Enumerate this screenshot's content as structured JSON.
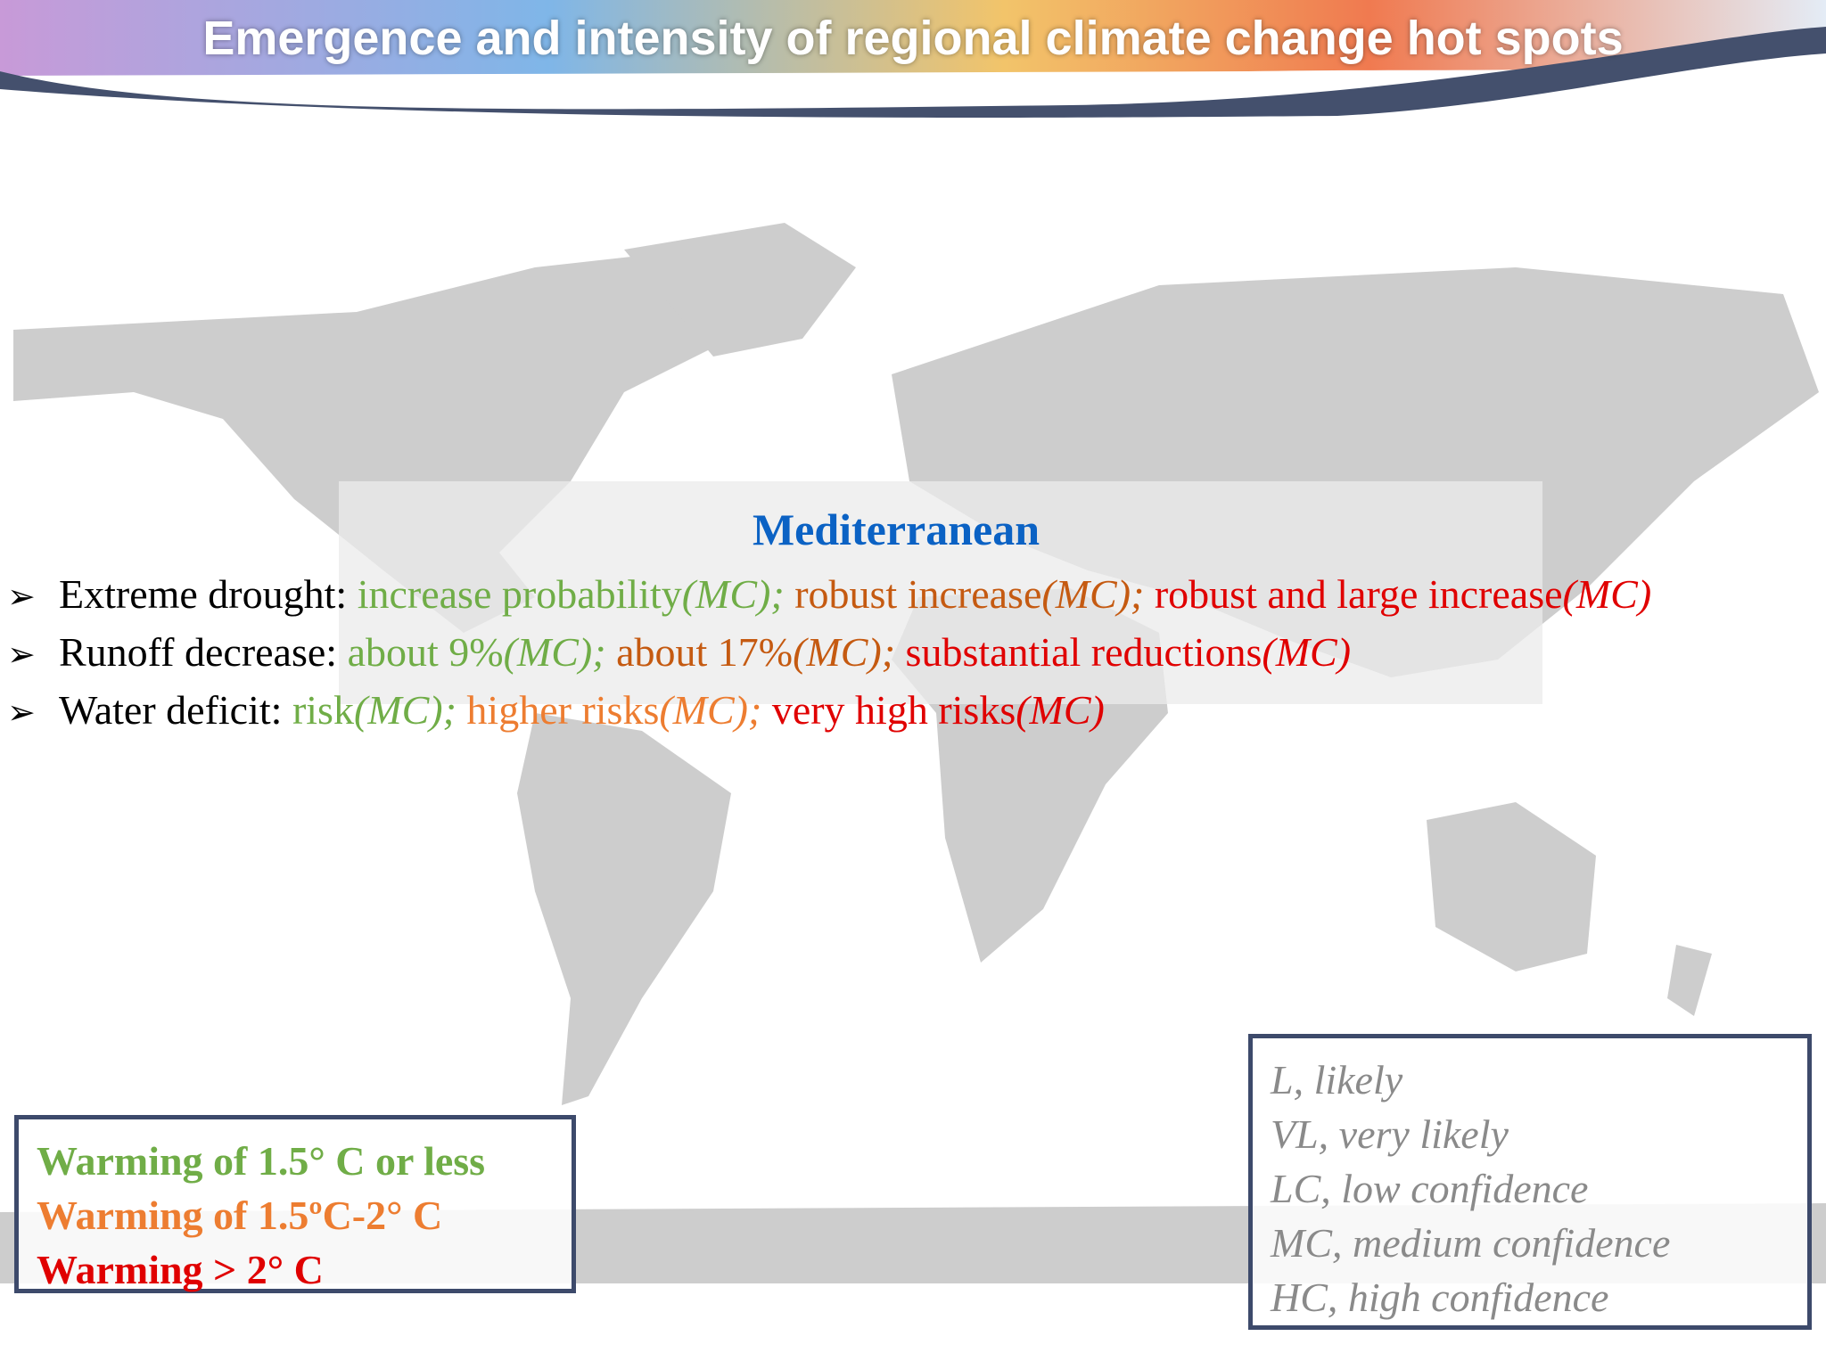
{
  "header": {
    "title": "Emergence and intensity of regional climate change hot spots"
  },
  "region": {
    "title": "Mediterranean",
    "bullets": [
      {
        "label": "Extreme drought:",
        "groups": [
          {
            "text": "increase probability",
            "note": "(MC);",
            "color": "#70ad47"
          },
          {
            "text": "robust increase",
            "note": "(MC);",
            "color": "#c55a11"
          },
          {
            "text": "robust and large increase",
            "note": "(MC)",
            "color": "#e00000"
          }
        ]
      },
      {
        "label": "Runoff decrease:",
        "groups": [
          {
            "text": "about 9%",
            "note": "(MC);",
            "color": "#70ad47"
          },
          {
            "text": "about 17%",
            "note": "(MC);",
            "color": "#c55a11"
          },
          {
            "text": "substantial reductions",
            "note": "(MC)",
            "color": "#e00000"
          }
        ]
      },
      {
        "label": "Water deficit:",
        "groups": [
          {
            "text": "risk",
            "note": "(MC);",
            "color": "#70ad47"
          },
          {
            "text": "higher risks",
            "note": "(MC);",
            "color": "#ed7d31"
          },
          {
            "text": "very high risks",
            "note": "(MC)",
            "color": "#e00000"
          }
        ]
      }
    ]
  },
  "legend": {
    "items": [
      {
        "text": "Warming of 1.5° C or less",
        "color": "#70ad47"
      },
      {
        "text": "Warming of 1.5ºC-2° C",
        "color": "#ed7d31"
      },
      {
        "text": "Warming > 2° C",
        "color": "#e00000"
      }
    ]
  },
  "abbreviations": {
    "items": [
      "L, likely",
      "VL, very likely",
      "LC, low confidence",
      "MC, medium confidence",
      "HC, high confidence"
    ]
  }
}
